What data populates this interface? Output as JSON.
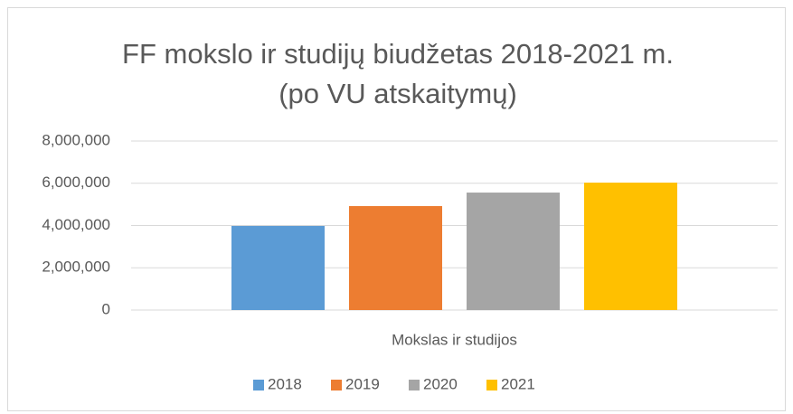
{
  "chart_data": {
    "type": "bar",
    "title": [
      "FF mokslo ir studijų biudžetas 2018-2021 m.",
      "(po VU atskaitymų)"
    ],
    "categories": [
      "Mokslas ir studijos"
    ],
    "series": [
      {
        "name": "2018",
        "color": "#5b9bd5",
        "values": [
          3980000
        ]
      },
      {
        "name": "2019",
        "color": "#ed7d31",
        "values": [
          4920000
        ]
      },
      {
        "name": "2020",
        "color": "#a5a5a5",
        "values": [
          5560000
        ]
      },
      {
        "name": "2021",
        "color": "#ffc000",
        "values": [
          6030000
        ]
      }
    ],
    "ylim": [
      0,
      8000000
    ],
    "yticks": [
      0,
      {
        "value": 2000000,
        "label": "2,000,000"
      },
      {
        "value": 4000000,
        "label": "4,000,000"
      },
      {
        "value": 6000000,
        "label": "6,000,000"
      },
      {
        "value": 8000000,
        "label": "8,000,000"
      }
    ],
    "grid": true,
    "legend": "bottom"
  }
}
